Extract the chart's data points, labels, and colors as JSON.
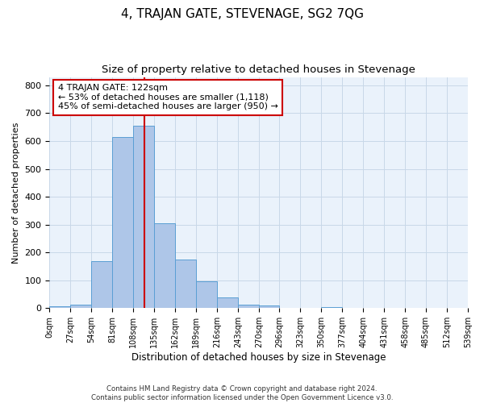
{
  "title": "4, TRAJAN GATE, STEVENAGE, SG2 7QG",
  "subtitle": "Size of property relative to detached houses in Stevenage",
  "xlabel": "Distribution of detached houses by size in Stevenage",
  "ylabel": "Number of detached properties",
  "bin_edges": [
    0,
    27,
    54,
    81,
    108,
    135,
    162,
    189,
    216,
    243,
    270,
    296,
    323,
    350,
    377,
    404,
    431,
    458,
    485,
    512,
    539
  ],
  "bar_heights": [
    7,
    14,
    170,
    615,
    655,
    305,
    175,
    97,
    38,
    14,
    10,
    0,
    0,
    5,
    0,
    0,
    0,
    0,
    0,
    0
  ],
  "bar_color": "#aec6e8",
  "bar_edge_color": "#5a9fd4",
  "vline_x": 122,
  "vline_color": "#cc0000",
  "annotation_line1": "4 TRAJAN GATE: 122sqm",
  "annotation_line2": "← 53% of detached houses are smaller (1,118)",
  "annotation_line3": "45% of semi-detached houses are larger (950) →",
  "annotation_box_color": "#ffffff",
  "annotation_box_edge": "#cc0000",
  "annotation_fontsize": 8.0,
  "grid_color": "#c8d8e8",
  "background_color": "#eaf2fb",
  "ylim": [
    0,
    830
  ],
  "yticks": [
    0,
    100,
    200,
    300,
    400,
    500,
    600,
    700,
    800
  ],
  "footer": "Contains HM Land Registry data © Crown copyright and database right 2024.\nContains public sector information licensed under the Open Government Licence v3.0.",
  "title_fontsize": 11,
  "subtitle_fontsize": 9.5,
  "xlabel_fontsize": 8.5,
  "ylabel_fontsize": 8.0
}
